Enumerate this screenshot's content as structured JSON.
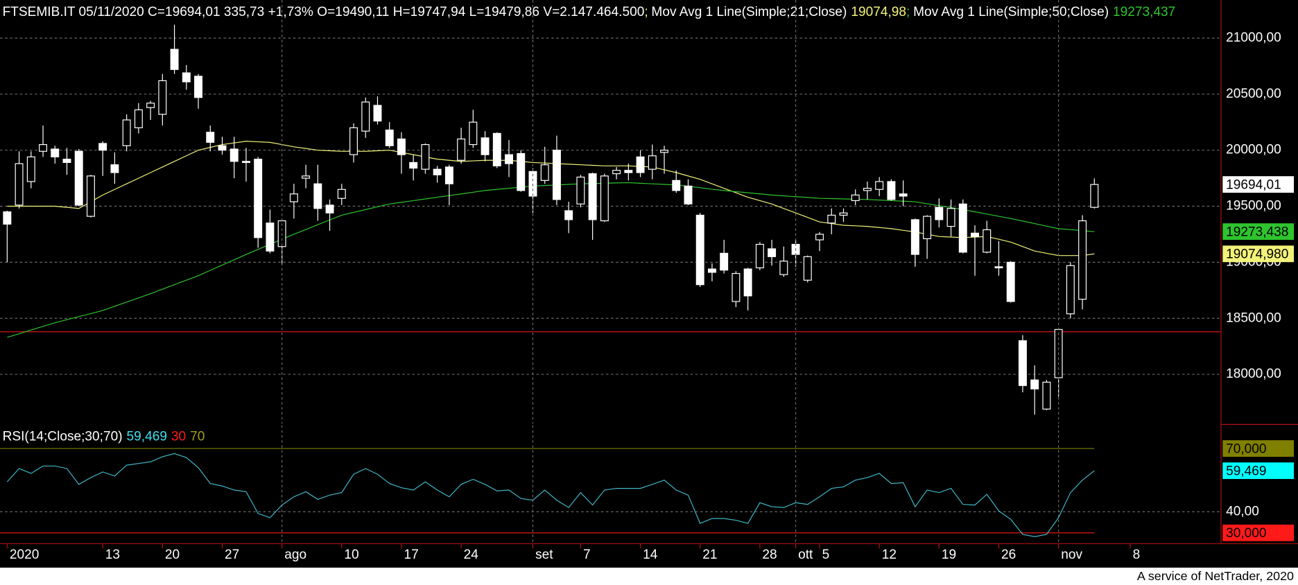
{
  "chart_data": [
    {
      "type": "candlestick",
      "title": "FTSEMIB.IT 05/11/2020 C=19694,01 335,73 +1,73% O=19490,11 H=19747,94 L=19479,86 V=2.147.464.500",
      "legend_separator": ";",
      "open": [
        19450,
        19510,
        19720,
        19990,
        20010,
        19920,
        19990,
        19410,
        20060,
        19870,
        20040,
        20200,
        20380,
        20320,
        20900,
        20690,
        20660,
        20160,
        20040,
        20010,
        19900,
        19920,
        19350,
        19140,
        19540,
        19750,
        19700,
        19510,
        19570,
        19960,
        20170,
        20400,
        20180,
        20100,
        19890,
        19830,
        19830,
        19850,
        19910,
        20050,
        20110,
        20150,
        19960,
        19970,
        19810,
        19730,
        20000,
        19460,
        19520,
        19790,
        19370,
        19790,
        19820,
        19940,
        19830,
        19980,
        19730,
        19680,
        19420,
        18940,
        19080,
        18650,
        18940,
        18950,
        19120,
        18890,
        19160,
        18840,
        19200,
        19350,
        19420,
        19550,
        19640,
        19650,
        19720,
        19610,
        19380,
        19210,
        19490,
        19320,
        19520,
        19260,
        19090,
        18960,
        19000,
        18300,
        17950,
        17690,
        17970,
        18540,
        18670,
        19490.11
      ],
      "high": [
        19460,
        19990,
        19990,
        20220,
        20040,
        20020,
        20010,
        19780,
        20080,
        19980,
        20320,
        20420,
        20440,
        20680,
        21120,
        20760,
        20680,
        20220,
        20120,
        20120,
        20020,
        19940,
        19470,
        19380,
        19700,
        19870,
        19870,
        19560,
        19700,
        20240,
        20470,
        20480,
        20250,
        20160,
        19960,
        20060,
        19860,
        19870,
        20200,
        20360,
        20170,
        20160,
        20090,
        20000,
        19840,
        20030,
        20130,
        19540,
        19780,
        19800,
        19790,
        19850,
        19880,
        20000,
        20050,
        20040,
        19820,
        19740,
        19440,
        18990,
        19200,
        18920,
        18950,
        19180,
        19200,
        19140,
        19200,
        19060,
        19270,
        19480,
        19480,
        19650,
        19720,
        19760,
        19740,
        19730,
        19390,
        19420,
        19570,
        19560,
        19560,
        19330,
        19370,
        19190,
        19010,
        18350,
        18080,
        17950,
        18410,
        19000,
        19420,
        19747.94
      ],
      "low": [
        19000,
        19480,
        19660,
        19940,
        19880,
        19780,
        19500,
        19400,
        19770,
        19700,
        19990,
        20150,
        20270,
        20220,
        20680,
        20540,
        20370,
        19990,
        19960,
        19750,
        19720,
        19130,
        19080,
        18980,
        19390,
        19660,
        19370,
        19280,
        19510,
        19890,
        20110,
        20230,
        20020,
        19790,
        19730,
        19790,
        19710,
        19510,
        19880,
        20020,
        19900,
        19840,
        19760,
        19630,
        19440,
        19700,
        19510,
        19260,
        19490,
        19200,
        19360,
        19740,
        19730,
        19760,
        19740,
        19790,
        19620,
        19510,
        18780,
        18830,
        18900,
        18600,
        18570,
        18930,
        18970,
        18870,
        18960,
        18820,
        19100,
        19250,
        19360,
        19510,
        19560,
        19590,
        19550,
        19500,
        18960,
        19030,
        19310,
        19230,
        19080,
        18880,
        19080,
        18880,
        18640,
        17840,
        17640,
        17680,
        17800,
        18500,
        18580,
        19479.86
      ],
      "close": [
        19340,
        19880,
        19940,
        20050,
        19940,
        19890,
        19510,
        19770,
        20000,
        19800,
        20270,
        20360,
        20420,
        20620,
        20720,
        20610,
        20470,
        20070,
        20000,
        19900,
        19890,
        19220,
        19100,
        19370,
        19610,
        19770,
        19480,
        19440,
        19650,
        20200,
        20430,
        20260,
        20040,
        19960,
        19840,
        20050,
        19780,
        19700,
        20100,
        20250,
        19960,
        19860,
        19880,
        19640,
        19590,
        19870,
        19560,
        19380,
        19760,
        19380,
        19770,
        19820,
        19800,
        19800,
        19950,
        20000,
        19640,
        19520,
        18800,
        18910,
        18930,
        18900,
        18700,
        19160,
        19050,
        19010,
        19070,
        19050,
        19250,
        19420,
        19440,
        19600,
        19660,
        19720,
        19560,
        19590,
        19070,
        19410,
        19380,
        19480,
        19090,
        19230,
        19290,
        18950,
        18650,
        17900,
        17870,
        17930,
        18400,
        18970,
        19370,
        19694.01
      ],
      "last_label": "19694,01",
      "up_color": "#000000",
      "down_color": "#ffffff",
      "wick_color": "#ffffff",
      "series": [
        {
          "name": "Mov Avg 1 Line(Simple;21;Close)",
          "color": "#f2f27a",
          "legend_value": "19074,98",
          "axis_value": "19074,980",
          "values": [
            19500,
            19500,
            19500,
            19500,
            19500,
            19490,
            19480,
            19540,
            19600,
            19650,
            19700,
            19750,
            19800,
            19850,
            19900,
            19950,
            20000,
            20025,
            20050,
            20065,
            20080,
            20075,
            20070,
            20050,
            20030,
            20015,
            20000,
            19995,
            19990,
            19990,
            19990,
            19995,
            20000,
            19980,
            19960,
            19940,
            19920,
            19910,
            19900,
            19905,
            19910,
            19910,
            19910,
            19900,
            19890,
            19885,
            19880,
            19875,
            19870,
            19865,
            19860,
            19860,
            19860,
            19855,
            19850,
            19825,
            19800,
            19770,
            19740,
            19700,
            19660,
            19620,
            19580,
            19550,
            19520,
            19480,
            19440,
            19400,
            19360,
            19345,
            19330,
            19325,
            19320,
            19310,
            19300,
            19285,
            19270,
            19250,
            19230,
            19225,
            19220,
            19225,
            19230,
            19205,
            19180,
            19140,
            19100,
            19080,
            19060,
            19060,
            19060,
            19074.98
          ]
        },
        {
          "name": "Mov Avg 1 Line(Simple;50;Close)",
          "color": "#2ec42e",
          "legend_value": "19273,437",
          "axis_value": "19273,438",
          "values": [
            18330,
            18362,
            18395,
            18428,
            18460,
            18488,
            18515,
            18542,
            18570,
            18608,
            18645,
            18682,
            18720,
            18760,
            18800,
            18840,
            18880,
            18928,
            18975,
            19022,
            19070,
            19115,
            19160,
            19205,
            19250,
            19292,
            19335,
            19378,
            19420,
            19445,
            19470,
            19495,
            19520,
            19535,
            19550,
            19565,
            19580,
            19595,
            19610,
            19625,
            19640,
            19650,
            19660,
            19670,
            19680,
            19685,
            19690,
            19695,
            19700,
            19702,
            19705,
            19708,
            19710,
            19705,
            19700,
            19695,
            19690,
            19678,
            19665,
            19652,
            19640,
            19630,
            19620,
            19610,
            19600,
            19592,
            19585,
            19578,
            19570,
            19568,
            19565,
            19562,
            19560,
            19555,
            19550,
            19545,
            19540,
            19522,
            19505,
            19488,
            19470,
            19450,
            19430,
            19410,
            19390,
            19368,
            19345,
            19322,
            19300,
            19291,
            19282,
            19273.4375
          ]
        }
      ],
      "hlines": [
        {
          "value": 18380,
          "color": "#d01010"
        }
      ],
      "xlim": [
        -0.6,
        101.6
      ],
      "ylim": [
        17560,
        21340
      ],
      "yticks": [
        {
          "value": 18000,
          "label": "18000,00"
        },
        {
          "value": 18500,
          "label": "18500,00"
        },
        {
          "value": 19000,
          "label": "19000,00"
        },
        {
          "value": 19500,
          "label": "19500,00"
        },
        {
          "value": 20000,
          "label": "20000,00"
        },
        {
          "value": 20500,
          "label": "20500,00"
        },
        {
          "value": 21000,
          "label": "21000,00"
        }
      ],
      "grid": true
    },
    {
      "type": "line",
      "title": "RSI(14;Close;30;70)",
      "series": [
        {
          "color": "#3fb7c8",
          "legend_value": "59,469",
          "axis_value": "59,469",
          "values": [
            54.2,
            60.5,
            58.2,
            61.7,
            61.7,
            60.5,
            53.0,
            56.2,
            58.9,
            57.0,
            62.1,
            62.9,
            63.7,
            66.1,
            67.6,
            65.7,
            60.9,
            53.4,
            52.2,
            50.3,
            49.5,
            39.2,
            37.2,
            43.2,
            47.1,
            49.5,
            45.9,
            47.9,
            49.1,
            57.8,
            60.5,
            57.8,
            53.4,
            51.4,
            50.3,
            54.2,
            50.3,
            47.1,
            53.0,
            55.4,
            53.0,
            49.9,
            50.3,
            46.3,
            45.5,
            50.3,
            45.5,
            42.0,
            49.1,
            43.2,
            50.3,
            51.1,
            51.1,
            51.1,
            53.0,
            55.0,
            50.3,
            47.9,
            34.5,
            36.8,
            36.8,
            36.0,
            34.5,
            44.3,
            42.4,
            42.0,
            44.3,
            43.5,
            47.1,
            51.1,
            51.8,
            55.0,
            56.2,
            58.2,
            53.4,
            53.8,
            42.4,
            50.3,
            49.1,
            51.1,
            43.5,
            43.2,
            48.3,
            40.4,
            36.4,
            29.3,
            28.2,
            29.3,
            37.2,
            49.1,
            55.0,
            59.469
          ]
        }
      ],
      "levels": [
        {
          "value": 30,
          "color": "#ff1a1a",
          "axis_value": "30,000"
        },
        {
          "value": 70,
          "color": "#808000",
          "axis_value": "70,000"
        }
      ],
      "xlim": [
        -0.6,
        101.6
      ],
      "ylim": [
        24.9,
        81
      ],
      "yticks": [
        {
          "value": 40,
          "label": "40,00"
        }
      ],
      "xticks": [
        {
          "value": 0,
          "label": "2020"
        },
        {
          "value": 8,
          "label": "13"
        },
        {
          "value": 13,
          "label": "20"
        },
        {
          "value": 18,
          "label": "27"
        },
        {
          "value": 28,
          "label": "10"
        },
        {
          "value": 33,
          "label": "17"
        },
        {
          "value": 38,
          "label": "24"
        },
        {
          "value": 48,
          "label": "7"
        },
        {
          "value": 53,
          "label": "14"
        },
        {
          "value": 58,
          "label": "21"
        },
        {
          "value": 63,
          "label": "28"
        },
        {
          "value": 68,
          "label": "5"
        },
        {
          "value": 73,
          "label": "12"
        },
        {
          "value": 78,
          "label": "19"
        },
        {
          "value": 83,
          "label": "26"
        },
        {
          "value": 94,
          "label": "8"
        }
      ],
      "xticks_major": [
        {
          "value": 23,
          "label": "ago"
        },
        {
          "value": 44,
          "label": "set"
        },
        {
          "value": 66,
          "label": "ott"
        },
        {
          "value": 88,
          "label": "nov"
        }
      ],
      "grid": true
    }
  ],
  "footer": "A service of NetTrader, 2020"
}
